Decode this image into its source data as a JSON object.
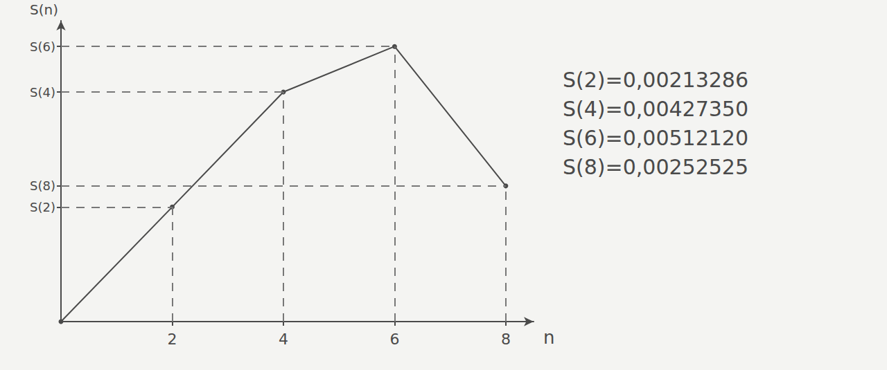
{
  "chart_data": {
    "type": "line",
    "x": [
      0,
      2,
      4,
      6,
      8
    ],
    "values": [
      0,
      0.00213286,
      0.0042735,
      0.0051212,
      0.00252525
    ],
    "xlim": [
      0,
      8.5
    ],
    "xticks": [
      2,
      4,
      6,
      8
    ],
    "ylim": [
      0,
      0.0056
    ],
    "yticks": [
      {
        "value": 0.00252525,
        "label": "S(8)"
      },
      {
        "value": 0.00213286,
        "label": "S(2)"
      },
      {
        "value": 0.0042735,
        "label": "S(4)"
      },
      {
        "value": 0.0051212,
        "label": "S(6)"
      }
    ],
    "xlabel": "n",
    "ylabel": "S(n)",
    "annotations": [
      "S(2)=0,00213286",
      "S(4)=0,00427350",
      "S(6)=0,00512120",
      "S(8)=0,00252525"
    ],
    "color": "#4a4a4a",
    "marker": "circle",
    "line_style": "solid"
  }
}
